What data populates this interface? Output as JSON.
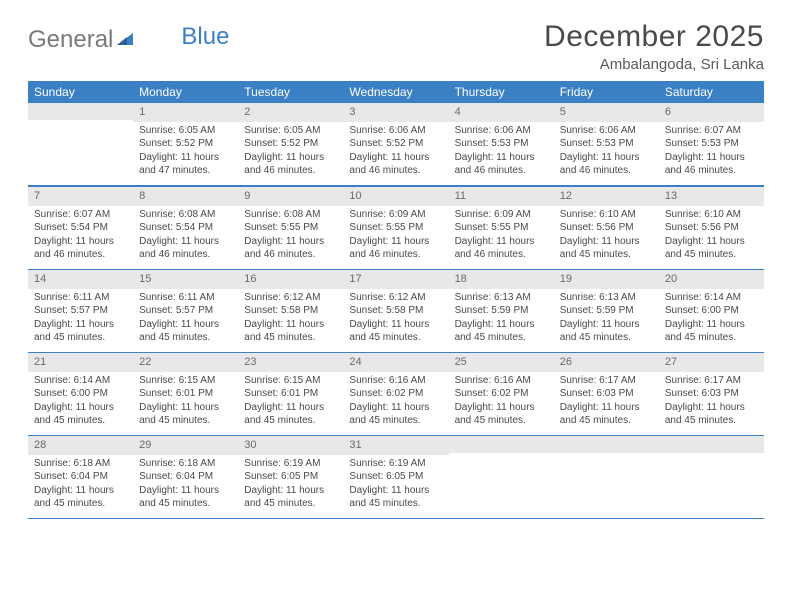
{
  "logo": {
    "text_gray": "General",
    "text_blue": "Blue"
  },
  "title": "December 2025",
  "location": "Ambalangoda, Sri Lanka",
  "colors": {
    "header_bg": "#3b7fc4",
    "header_text": "#ffffff",
    "daynum_bg": "#e8e8e8",
    "daynum_text": "#6a6a6a",
    "body_text": "#4a4a4a",
    "rule": "#3b7fc4",
    "page_bg": "#ffffff",
    "logo_gray": "#7a7a7a",
    "logo_blue": "#3b7fc4"
  },
  "day_names": [
    "Sunday",
    "Monday",
    "Tuesday",
    "Wednesday",
    "Thursday",
    "Friday",
    "Saturday"
  ],
  "weeks": [
    [
      null,
      {
        "n": "1",
        "sr": "Sunrise: 6:05 AM",
        "ss": "Sunset: 5:52 PM",
        "dl": "Daylight: 11 hours and 47 minutes."
      },
      {
        "n": "2",
        "sr": "Sunrise: 6:05 AM",
        "ss": "Sunset: 5:52 PM",
        "dl": "Daylight: 11 hours and 46 minutes."
      },
      {
        "n": "3",
        "sr": "Sunrise: 6:06 AM",
        "ss": "Sunset: 5:52 PM",
        "dl": "Daylight: 11 hours and 46 minutes."
      },
      {
        "n": "4",
        "sr": "Sunrise: 6:06 AM",
        "ss": "Sunset: 5:53 PM",
        "dl": "Daylight: 11 hours and 46 minutes."
      },
      {
        "n": "5",
        "sr": "Sunrise: 6:06 AM",
        "ss": "Sunset: 5:53 PM",
        "dl": "Daylight: 11 hours and 46 minutes."
      },
      {
        "n": "6",
        "sr": "Sunrise: 6:07 AM",
        "ss": "Sunset: 5:53 PM",
        "dl": "Daylight: 11 hours and 46 minutes."
      }
    ],
    [
      {
        "n": "7",
        "sr": "Sunrise: 6:07 AM",
        "ss": "Sunset: 5:54 PM",
        "dl": "Daylight: 11 hours and 46 minutes."
      },
      {
        "n": "8",
        "sr": "Sunrise: 6:08 AM",
        "ss": "Sunset: 5:54 PM",
        "dl": "Daylight: 11 hours and 46 minutes."
      },
      {
        "n": "9",
        "sr": "Sunrise: 6:08 AM",
        "ss": "Sunset: 5:55 PM",
        "dl": "Daylight: 11 hours and 46 minutes."
      },
      {
        "n": "10",
        "sr": "Sunrise: 6:09 AM",
        "ss": "Sunset: 5:55 PM",
        "dl": "Daylight: 11 hours and 46 minutes."
      },
      {
        "n": "11",
        "sr": "Sunrise: 6:09 AM",
        "ss": "Sunset: 5:55 PM",
        "dl": "Daylight: 11 hours and 46 minutes."
      },
      {
        "n": "12",
        "sr": "Sunrise: 6:10 AM",
        "ss": "Sunset: 5:56 PM",
        "dl": "Daylight: 11 hours and 45 minutes."
      },
      {
        "n": "13",
        "sr": "Sunrise: 6:10 AM",
        "ss": "Sunset: 5:56 PM",
        "dl": "Daylight: 11 hours and 45 minutes."
      }
    ],
    [
      {
        "n": "14",
        "sr": "Sunrise: 6:11 AM",
        "ss": "Sunset: 5:57 PM",
        "dl": "Daylight: 11 hours and 45 minutes."
      },
      {
        "n": "15",
        "sr": "Sunrise: 6:11 AM",
        "ss": "Sunset: 5:57 PM",
        "dl": "Daylight: 11 hours and 45 minutes."
      },
      {
        "n": "16",
        "sr": "Sunrise: 6:12 AM",
        "ss": "Sunset: 5:58 PM",
        "dl": "Daylight: 11 hours and 45 minutes."
      },
      {
        "n": "17",
        "sr": "Sunrise: 6:12 AM",
        "ss": "Sunset: 5:58 PM",
        "dl": "Daylight: 11 hours and 45 minutes."
      },
      {
        "n": "18",
        "sr": "Sunrise: 6:13 AM",
        "ss": "Sunset: 5:59 PM",
        "dl": "Daylight: 11 hours and 45 minutes."
      },
      {
        "n": "19",
        "sr": "Sunrise: 6:13 AM",
        "ss": "Sunset: 5:59 PM",
        "dl": "Daylight: 11 hours and 45 minutes."
      },
      {
        "n": "20",
        "sr": "Sunrise: 6:14 AM",
        "ss": "Sunset: 6:00 PM",
        "dl": "Daylight: 11 hours and 45 minutes."
      }
    ],
    [
      {
        "n": "21",
        "sr": "Sunrise: 6:14 AM",
        "ss": "Sunset: 6:00 PM",
        "dl": "Daylight: 11 hours and 45 minutes."
      },
      {
        "n": "22",
        "sr": "Sunrise: 6:15 AM",
        "ss": "Sunset: 6:01 PM",
        "dl": "Daylight: 11 hours and 45 minutes."
      },
      {
        "n": "23",
        "sr": "Sunrise: 6:15 AM",
        "ss": "Sunset: 6:01 PM",
        "dl": "Daylight: 11 hours and 45 minutes."
      },
      {
        "n": "24",
        "sr": "Sunrise: 6:16 AM",
        "ss": "Sunset: 6:02 PM",
        "dl": "Daylight: 11 hours and 45 minutes."
      },
      {
        "n": "25",
        "sr": "Sunrise: 6:16 AM",
        "ss": "Sunset: 6:02 PM",
        "dl": "Daylight: 11 hours and 45 minutes."
      },
      {
        "n": "26",
        "sr": "Sunrise: 6:17 AM",
        "ss": "Sunset: 6:03 PM",
        "dl": "Daylight: 11 hours and 45 minutes."
      },
      {
        "n": "27",
        "sr": "Sunrise: 6:17 AM",
        "ss": "Sunset: 6:03 PM",
        "dl": "Daylight: 11 hours and 45 minutes."
      }
    ],
    [
      {
        "n": "28",
        "sr": "Sunrise: 6:18 AM",
        "ss": "Sunset: 6:04 PM",
        "dl": "Daylight: 11 hours and 45 minutes."
      },
      {
        "n": "29",
        "sr": "Sunrise: 6:18 AM",
        "ss": "Sunset: 6:04 PM",
        "dl": "Daylight: 11 hours and 45 minutes."
      },
      {
        "n": "30",
        "sr": "Sunrise: 6:19 AM",
        "ss": "Sunset: 6:05 PM",
        "dl": "Daylight: 11 hours and 45 minutes."
      },
      {
        "n": "31",
        "sr": "Sunrise: 6:19 AM",
        "ss": "Sunset: 6:05 PM",
        "dl": "Daylight: 11 hours and 45 minutes."
      },
      null,
      null,
      null
    ]
  ]
}
